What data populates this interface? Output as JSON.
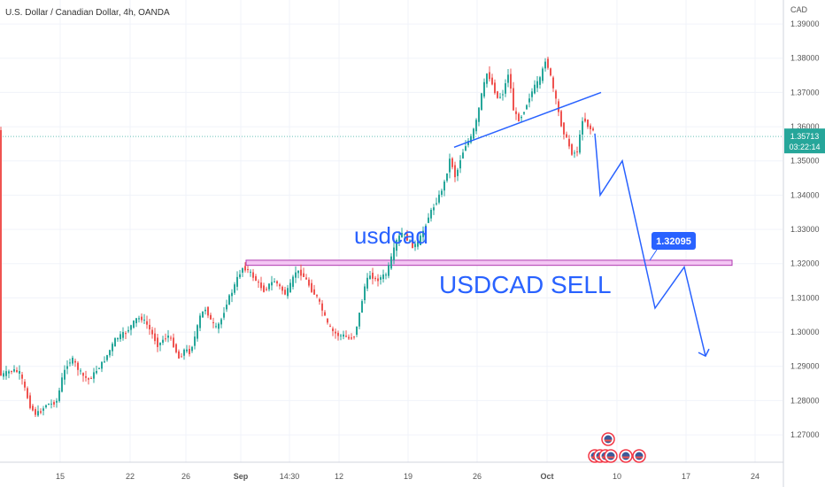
{
  "header": {
    "symbol_title": "U.S. Dollar / Canadian Dollar, 4h, OANDA",
    "currency": "CAD"
  },
  "price_badge": {
    "price": "1.35713",
    "countdown": "03:22:14"
  },
  "annotations": {
    "symbol_text": "usdcad",
    "sell_text": "USDCAD SELL",
    "target_label": "1.32095"
  },
  "colors": {
    "up": "#26a69a",
    "down": "#ef5350",
    "drawing": "#2962ff",
    "zone_fill": "#f3c6f3",
    "zone_border": "#b03ab0",
    "price_line": "#26a69a"
  },
  "chart_data": {
    "type": "candlestick",
    "title": "U.S. Dollar / Canadian Dollar, 4h, OANDA",
    "ylabel": "CAD",
    "ylim": [
      1.262,
      1.397
    ],
    "y_ticks": [
      "1.27000",
      "1.28000",
      "1.29000",
      "1.30000",
      "1.31000",
      "1.32000",
      "1.33000",
      "1.34000",
      "1.35000",
      "1.36000",
      "1.37000",
      "1.38000",
      "1.39000"
    ],
    "x_ticks": [
      "15",
      "22",
      "26",
      "Sep",
      "14:30",
      "12",
      "19",
      "26",
      "Oct",
      "10",
      "17",
      "24"
    ],
    "grid": true,
    "last_price": 1.35713,
    "series": [
      {
        "name": "price",
        "path_xy": [
          [
            0,
            1.287
          ],
          [
            8,
            1.288
          ],
          [
            16,
            1.289
          ],
          [
            24,
            1.288
          ],
          [
            30,
            1.283
          ],
          [
            36,
            1.278
          ],
          [
            42,
            1.276
          ],
          [
            48,
            1.277
          ],
          [
            54,
            1.279
          ],
          [
            60,
            1.279
          ],
          [
            66,
            1.28
          ],
          [
            72,
            1.287
          ],
          [
            78,
            1.291
          ],
          [
            84,
            1.292
          ],
          [
            90,
            1.289
          ],
          [
            96,
            1.287
          ],
          [
            102,
            1.286
          ],
          [
            108,
            1.288
          ],
          [
            114,
            1.29
          ],
          [
            120,
            1.292
          ],
          [
            126,
            1.295
          ],
          [
            132,
            1.298
          ],
          [
            138,
            1.299
          ],
          [
            144,
            1.3
          ],
          [
            150,
            1.302
          ],
          [
            156,
            1.304
          ],
          [
            162,
            1.304
          ],
          [
            168,
            1.302
          ],
          [
            174,
            1.299
          ],
          [
            180,
            1.296
          ],
          [
            186,
            1.298
          ],
          [
            192,
            1.299
          ],
          [
            198,
            1.296
          ],
          [
            204,
            1.292
          ],
          [
            210,
            1.295
          ],
          [
            216,
            1.294
          ],
          [
            222,
            1.299
          ],
          [
            228,
            1.305
          ],
          [
            234,
            1.307
          ],
          [
            240,
            1.303
          ],
          [
            246,
            1.301
          ],
          [
            252,
            1.304
          ],
          [
            258,
            1.309
          ],
          [
            264,
            1.312
          ],
          [
            270,
            1.316
          ],
          [
            276,
            1.319
          ],
          [
            282,
            1.318
          ],
          [
            288,
            1.316
          ],
          [
            294,
            1.314
          ],
          [
            300,
            1.312
          ],
          [
            306,
            1.314
          ],
          [
            312,
            1.315
          ],
          [
            318,
            1.313
          ],
          [
            324,
            1.311
          ],
          [
            330,
            1.314
          ],
          [
            336,
            1.318
          ],
          [
            342,
            1.317
          ],
          [
            348,
            1.315
          ],
          [
            354,
            1.312
          ],
          [
            360,
            1.31
          ],
          [
            366,
            1.306
          ],
          [
            372,
            1.302
          ],
          [
            378,
            1.3
          ],
          [
            384,
            1.299
          ],
          [
            390,
            1.299
          ],
          [
            396,
            1.298
          ],
          [
            402,
            1.299
          ],
          [
            408,
            1.306
          ],
          [
            414,
            1.314
          ],
          [
            420,
            1.317
          ],
          [
            426,
            1.315
          ],
          [
            432,
            1.316
          ],
          [
            438,
            1.317
          ],
          [
            444,
            1.322
          ],
          [
            450,
            1.327
          ],
          [
            456,
            1.329
          ],
          [
            462,
            1.327
          ],
          [
            468,
            1.325
          ],
          [
            474,
            1.326
          ],
          [
            480,
            1.33
          ],
          [
            486,
            1.334
          ],
          [
            492,
            1.337
          ],
          [
            498,
            1.34
          ],
          [
            504,
            1.344
          ],
          [
            510,
            1.351
          ],
          [
            516,
            1.345
          ],
          [
            522,
            1.351
          ],
          [
            528,
            1.355
          ],
          [
            534,
            1.357
          ],
          [
            540,
            1.362
          ],
          [
            546,
            1.37
          ],
          [
            552,
            1.376
          ],
          [
            558,
            1.372
          ],
          [
            564,
            1.368
          ],
          [
            570,
            1.37
          ],
          [
            576,
            1.376
          ],
          [
            582,
            1.364
          ],
          [
            588,
            1.362
          ],
          [
            594,
            1.365
          ],
          [
            600,
            1.369
          ],
          [
            606,
            1.372
          ],
          [
            612,
            1.374
          ],
          [
            618,
            1.38
          ],
          [
            624,
            1.374
          ],
          [
            630,
            1.367
          ],
          [
            636,
            1.36
          ],
          [
            642,
            1.356
          ],
          [
            648,
            1.352
          ],
          [
            654,
            1.353
          ],
          [
            660,
            1.363
          ],
          [
            666,
            1.36
          ],
          [
            670,
            1.359
          ]
        ]
      },
      {
        "name": "projection",
        "path_xy": [
          [
            672,
            1.358
          ],
          [
            678,
            1.34
          ],
          [
            703,
            1.35
          ],
          [
            740,
            1.307
          ],
          [
            773,
            1.319
          ],
          [
            797,
            1.293
          ]
        ]
      }
    ],
    "trendline": [
      [
        513,
        1.354
      ],
      [
        679,
        1.37
      ]
    ],
    "resistance_zone": {
      "low": 1.3195,
      "high": 1.321,
      "x_start": 278,
      "x_end": 827
    },
    "current_price_line": 1.35713
  }
}
